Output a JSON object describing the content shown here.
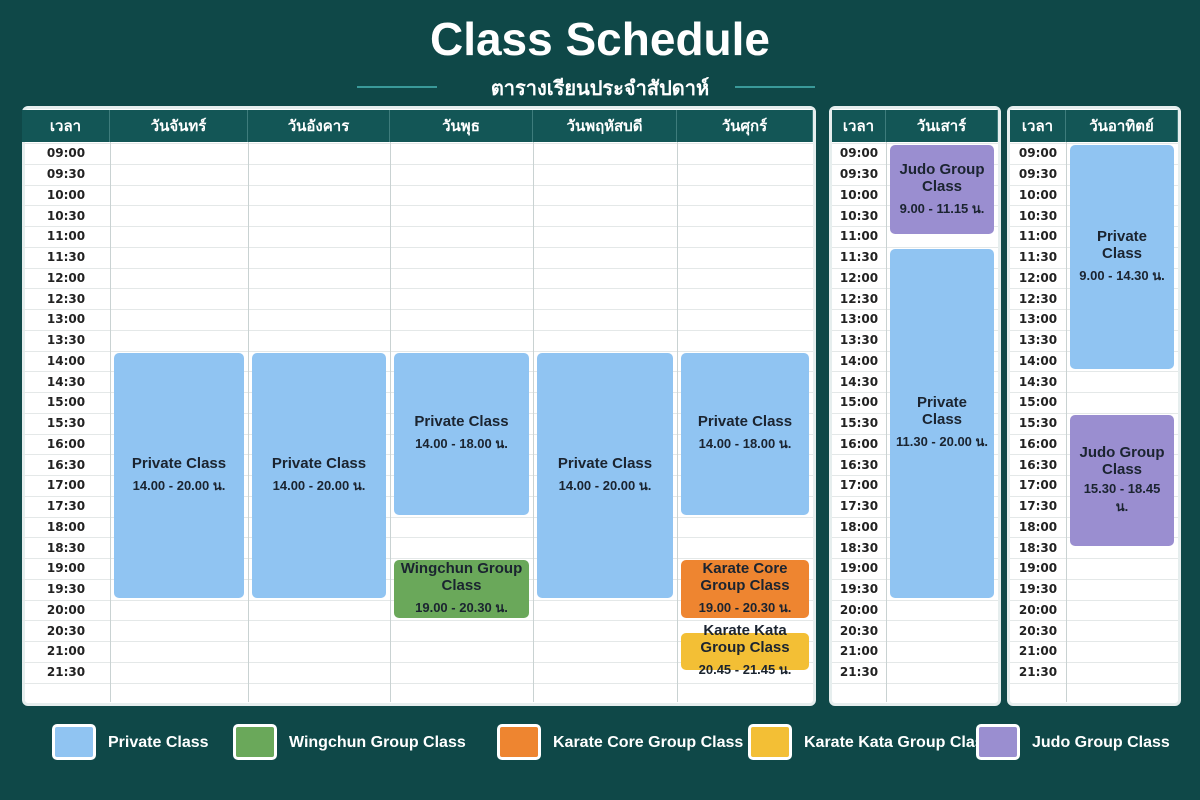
{
  "header": {
    "title": "Class Schedule",
    "subtitle": "ตารางเรียนประจำสัปดาห์"
  },
  "times": [
    "09:00",
    "09:30",
    "10:00",
    "10:30",
    "11:00",
    "11:30",
    "12:00",
    "12:30",
    "13:00",
    "13:30",
    "14:00",
    "14:30",
    "15:00",
    "15:30",
    "16:00",
    "16:30",
    "17:00",
    "17:30",
    "18:00",
    "18:30",
    "19:00",
    "19:30",
    "20:00",
    "20:30",
    "21:00",
    "21:30"
  ],
  "panels": [
    {
      "time_header": "เวลา",
      "days": [
        {
          "name": "วันจันทร์",
          "classes": [
            {
              "title": "Private Class",
              "time": "14.00 - 20.00 น.",
              "color": "#90c4f2"
            }
          ]
        },
        {
          "name": "วันอังคาร",
          "classes": [
            {
              "title": "Private Class",
              "time": "14.00 - 20.00 น.",
              "color": "#90c4f2"
            }
          ]
        },
        {
          "name": "วันพุธ",
          "classes": [
            {
              "title": "Private Class",
              "time": "14.00 - 18.00 น.",
              "color": "#90c4f2"
            },
            {
              "title": "Wingchun Group Class",
              "time": "19.00 - 20.30 น.",
              "color": "#6aa85a"
            }
          ]
        },
        {
          "name": "วันพฤหัสบดี",
          "classes": [
            {
              "title": "Private Class",
              "time": "14.00 - 20.00 น.",
              "color": "#90c4f2"
            }
          ]
        },
        {
          "name": "วันศุกร์",
          "classes": [
            {
              "title": "Private Class",
              "time": "14.00 - 18.00 น.",
              "color": "#90c4f2"
            },
            {
              "title": "Karate Core Group Class",
              "time": "19.00 - 20.30 น.",
              "color": "#ee8530"
            },
            {
              "title": "Karate Kata Group Class",
              "time": "20.45 - 21.45 น.",
              "color": "#f3bf35"
            }
          ]
        }
      ]
    },
    {
      "time_header": "เวลา",
      "days": [
        {
          "name": "วันเสาร์",
          "classes": [
            {
              "title": "Judo Group Class",
              "time": "9.00 - 11.15 น.",
              "color": "#9a8ed0"
            },
            {
              "title": "Private Class",
              "time": "11.30 - 20.00 น.",
              "color": "#90c4f2"
            }
          ]
        }
      ]
    },
    {
      "time_header": "เวลา",
      "days": [
        {
          "name": "วันอาทิตย์",
          "classes": [
            {
              "title": "Private Class",
              "time": "9.00 - 14.30 น.",
              "color": "#90c4f2"
            },
            {
              "title": "Judo Group Class",
              "time": "15.30 - 18.45 น.",
              "color": "#9a8ed0"
            }
          ]
        }
      ]
    }
  ],
  "legend": [
    {
      "label": "Private Class",
      "color": "#90c4f2"
    },
    {
      "label": "Wingchun Group Class",
      "color": "#6aa85a"
    },
    {
      "label": "Karate Core Group Class",
      "color": "#ee8530"
    },
    {
      "label": "Karate Kata Group Class",
      "color": "#f3bf35"
    },
    {
      "label": "Judo Group Class",
      "color": "#9a8ed0"
    }
  ]
}
